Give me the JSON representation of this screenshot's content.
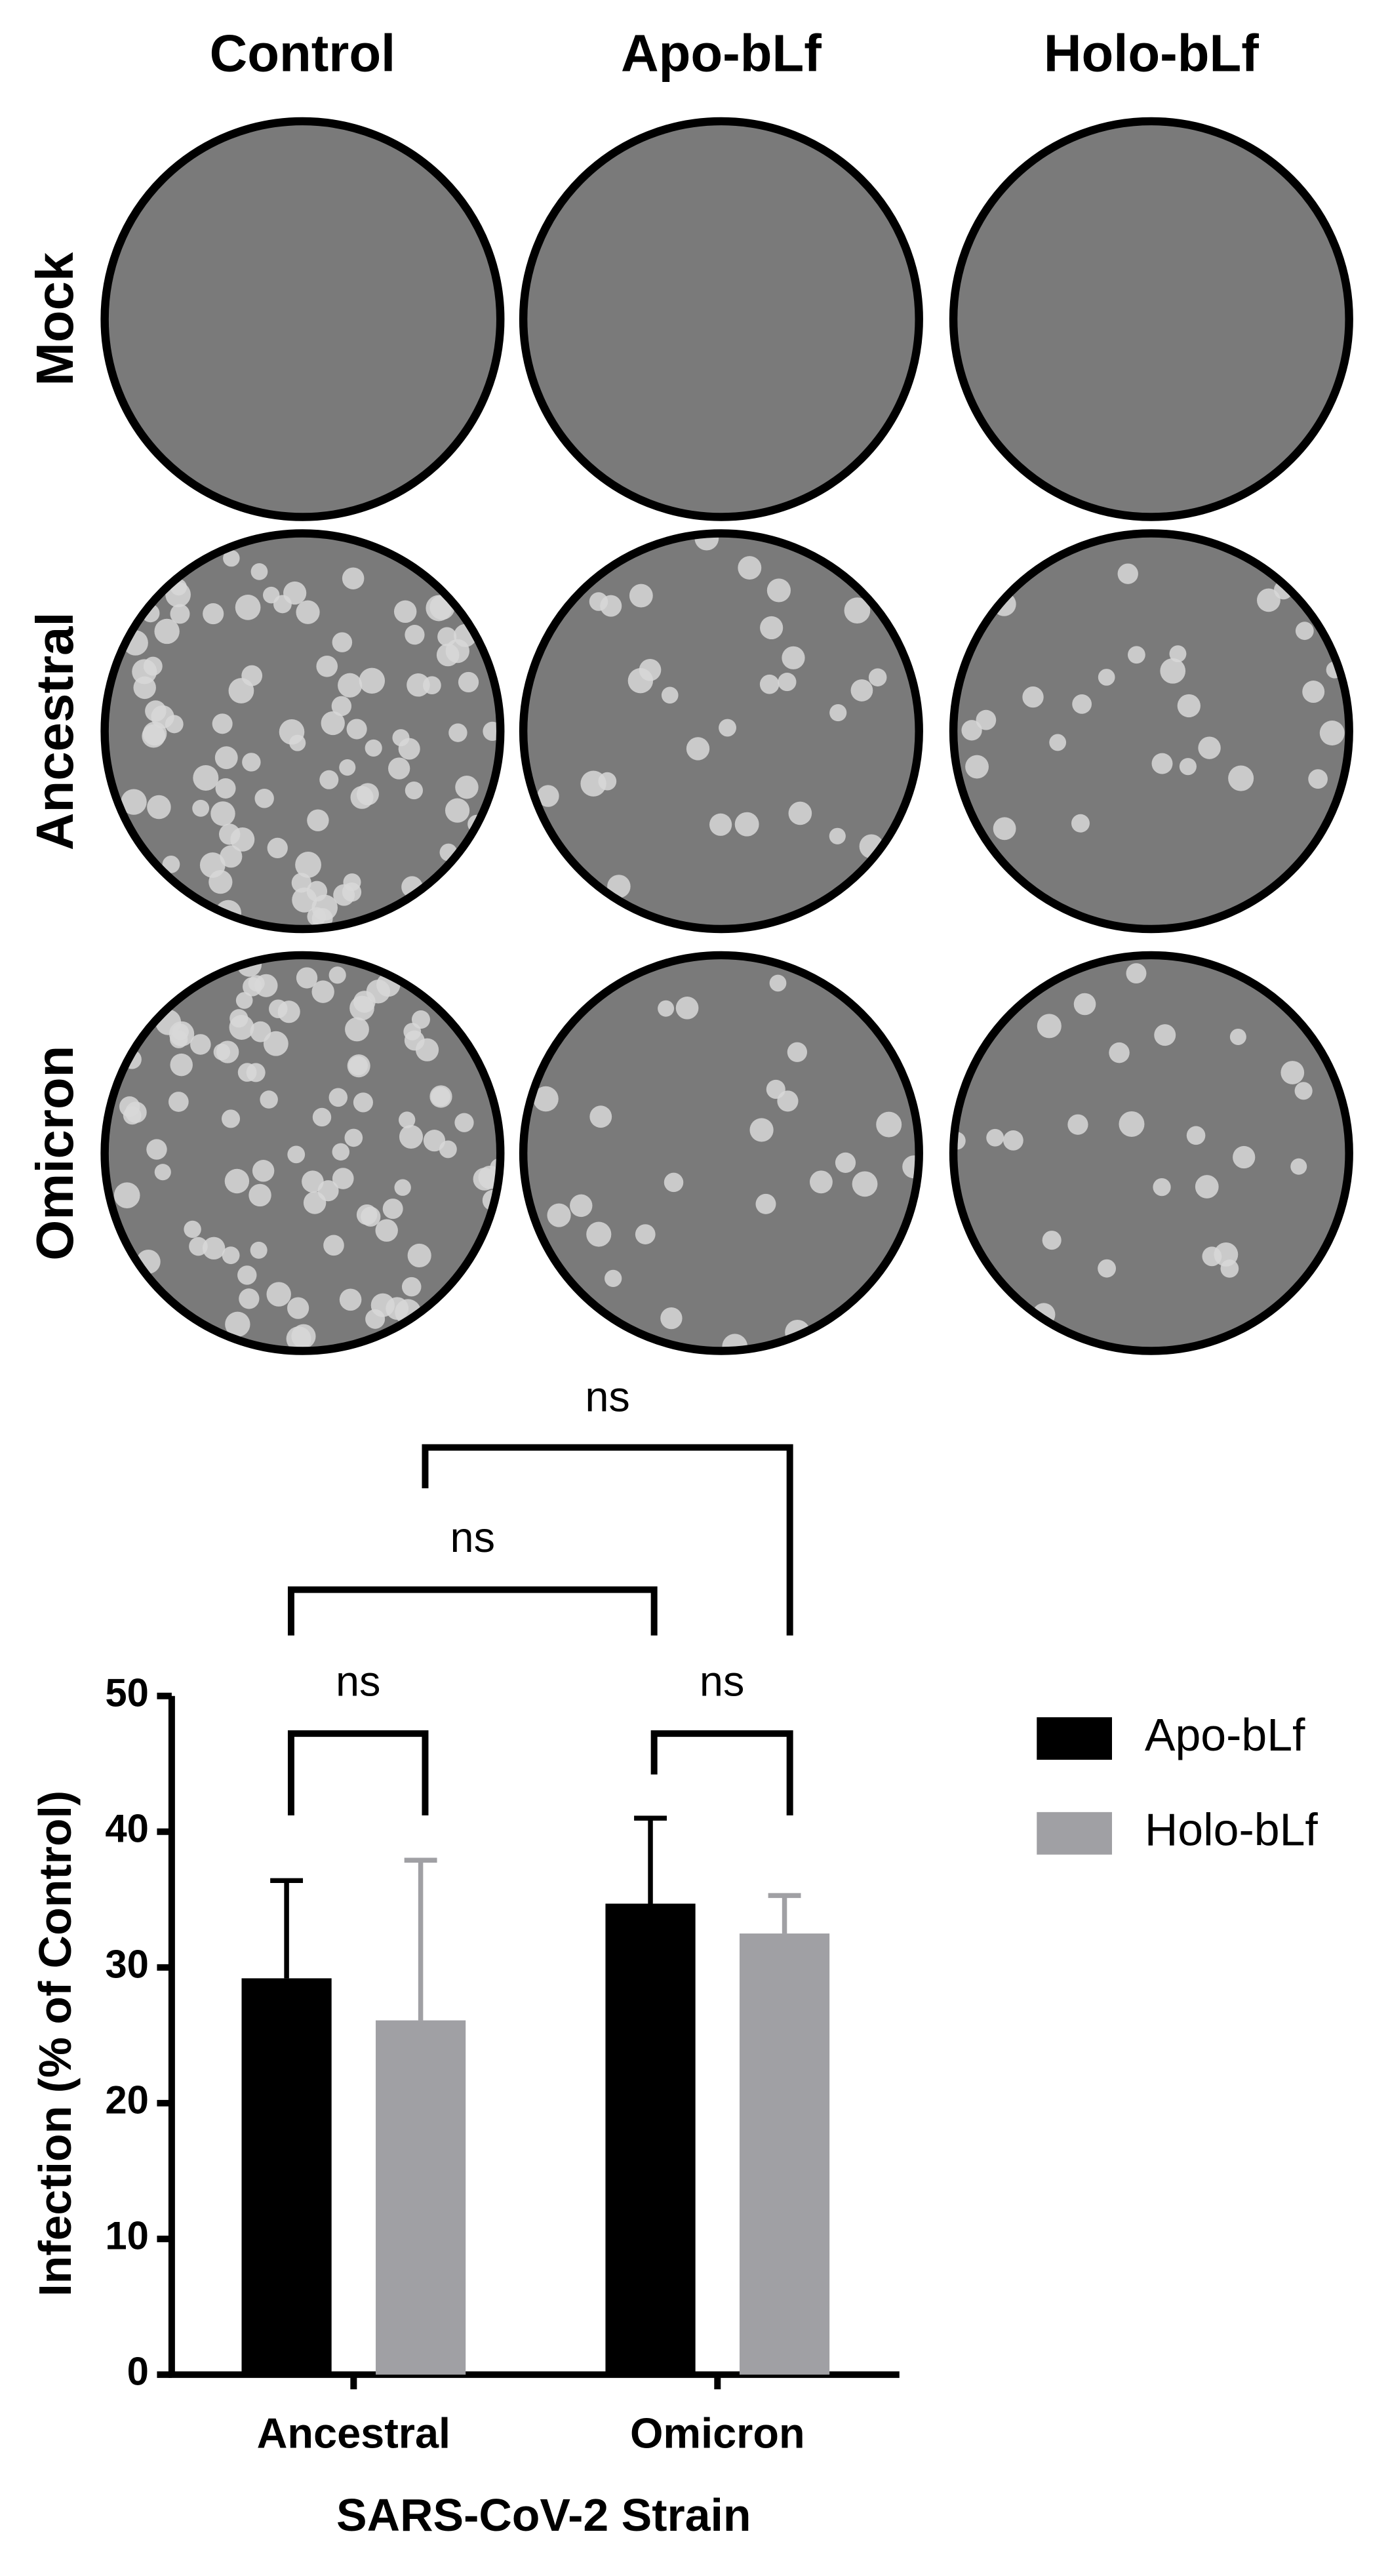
{
  "plates": {
    "columns": [
      "Control",
      "Apo-bLf",
      "Holo-bLf"
    ],
    "rows": [
      "Mock",
      "Ancestral",
      "Omicron"
    ]
  },
  "chart_data": {
    "type": "bar",
    "categories": [
      "Ancestral",
      "Omicron"
    ],
    "series": [
      {
        "name": "Apo-bLf",
        "color": "#000000",
        "values": [
          29.2,
          34.7
        ],
        "errors": [
          7.2,
          6.3
        ]
      },
      {
        "name": "Holo-bLf",
        "color": "#a0a0a4",
        "values": [
          26.1,
          32.5
        ],
        "errors": [
          11.8,
          2.8
        ]
      }
    ],
    "ylim": [
      0,
      50
    ],
    "yticks": [
      0,
      10,
      20,
      30,
      40,
      50
    ],
    "xlabel": "SARS-CoV-2 Strain",
    "ylabel": "Infection (% of Control)",
    "annotations": [
      "ns",
      "ns",
      "ns",
      "ns"
    ],
    "legend": "right"
  }
}
